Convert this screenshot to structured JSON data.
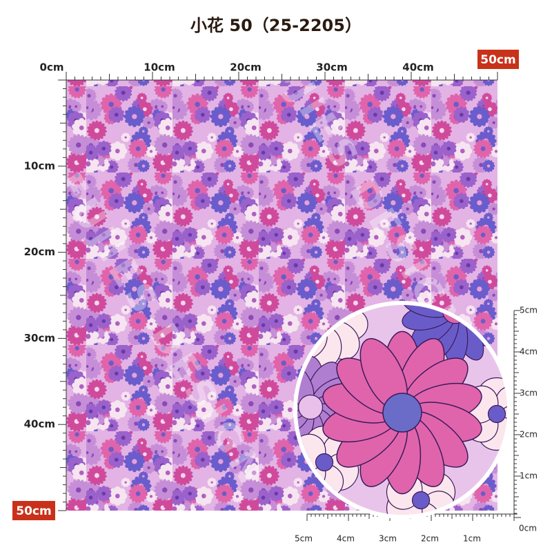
{
  "title": "小花 50（25-2205）",
  "top_ruler": {
    "labels": [
      "0cm",
      "10cm",
      "20cm",
      "30cm",
      "40cm",
      "50cm"
    ]
  },
  "left_ruler": {
    "labels": [
      "10cm",
      "20cm",
      "30cm",
      "40cm",
      "50cm"
    ]
  },
  "zoom_ruler_right": {
    "labels": [
      "5cm",
      "4cm",
      "3cm",
      "2cm",
      "1cm",
      "0cm"
    ]
  },
  "zoom_ruler_bottom": {
    "labels": [
      "5cm",
      "4cm",
      "3cm",
      "2cm",
      "1cm"
    ]
  },
  "watermark": "FUJIES DESIGN"
}
